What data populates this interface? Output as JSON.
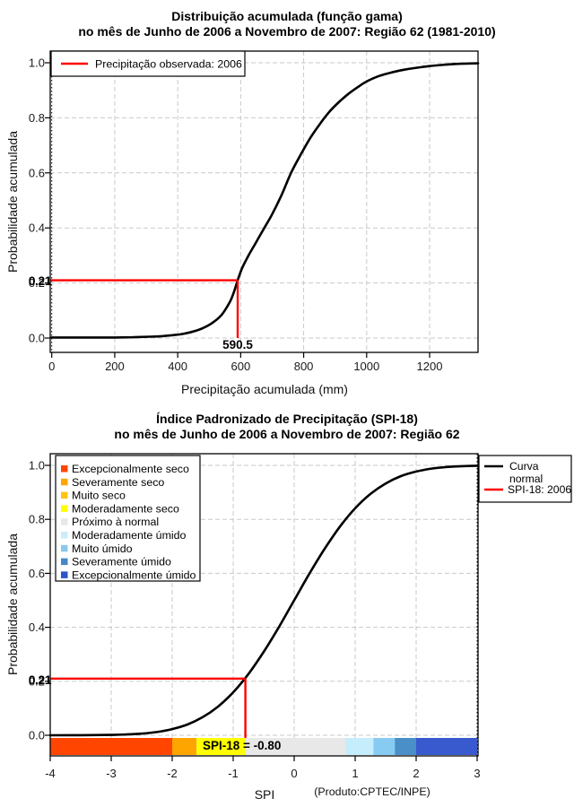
{
  "accent_color": "#FF0000",
  "curve_color": "#000000",
  "chart_data": [
    {
      "type": "line",
      "title": "Distribuição acumulada (função gama)",
      "subtitle": "no mês de Junho de 2006 a Novembro de 2007: Região 62 (1981-2010)",
      "xlabel": "Precipitação acumulada (mm)",
      "ylabel": "Probabilidade acumulada",
      "xlim": [
        0,
        1360
      ],
      "ylim": [
        0,
        1
      ],
      "grid": true,
      "xticks": [
        "0",
        "200",
        "400",
        "600",
        "800",
        "1000",
        "1200"
      ],
      "yticks": [
        "0.0",
        "0.2",
        "0.4",
        "0.6",
        "0.8",
        "1.0"
      ],
      "legend": [
        {
          "label": "Precipitação observada: 2006",
          "color": "#FF0000"
        }
      ],
      "legend_position": "top-left",
      "series": [
        {
          "name": "Distribuição gama acumulada",
          "color": "#000000",
          "points": [
            [
              0,
              0.002
            ],
            [
              120,
              0.002
            ],
            [
              200,
              0.002
            ],
            [
              260,
              0.003
            ],
            [
              310,
              0.005
            ],
            [
              350,
              0.007
            ],
            [
              390,
              0.011
            ],
            [
              420,
              0.016
            ],
            [
              450,
              0.024
            ],
            [
              480,
              0.036
            ],
            [
              510,
              0.055
            ],
            [
              540,
              0.085
            ],
            [
              565,
              0.13
            ],
            [
              578,
              0.165
            ],
            [
              590.5,
              0.21
            ],
            [
              605,
              0.255
            ],
            [
              625,
              0.3
            ],
            [
              650,
              0.35
            ],
            [
              675,
              0.4
            ],
            [
              700,
              0.45
            ],
            [
              730,
              0.52
            ],
            [
              760,
              0.6
            ],
            [
              790,
              0.665
            ],
            [
              820,
              0.725
            ],
            [
              850,
              0.775
            ],
            [
              880,
              0.82
            ],
            [
              910,
              0.855
            ],
            [
              940,
              0.885
            ],
            [
              970,
              0.91
            ],
            [
              1000,
              0.932
            ],
            [
              1040,
              0.952
            ],
            [
              1080,
              0.965
            ],
            [
              1120,
              0.975
            ],
            [
              1160,
              0.982
            ],
            [
              1200,
              0.988
            ],
            [
              1250,
              0.993
            ],
            [
              1300,
              0.9965
            ],
            [
              1354,
              0.998
            ]
          ]
        }
      ],
      "marker": {
        "x": 590.5,
        "y": 0.21,
        "x_label": "590.5",
        "y_label": "0.21",
        "color": "#FF0000"
      }
    },
    {
      "type": "line",
      "title": "Índice Padronizado de Precipitação (SPI-18)",
      "subtitle": "no mês de Junho de 2006 a Novembro de 2007: Região 62",
      "xlabel": "SPI",
      "ylabel": "Probabilidade acumulada",
      "xlim": [
        -4,
        3
      ],
      "ylim": [
        0,
        1
      ],
      "grid": true,
      "xticks": [
        "-4",
        "-3",
        "-2",
        "-1",
        "0",
        "1",
        "2",
        "3"
      ],
      "yticks": [
        "0.0",
        "0.2",
        "0.4",
        "0.6",
        "0.8",
        "1.0"
      ],
      "categories_legend": [
        {
          "label": "Excepcionalmente seco",
          "color": "#FF4500"
        },
        {
          "label": "Severamente seco",
          "color": "#FFA500"
        },
        {
          "label": "Muito seco",
          "color": "#FFC414"
        },
        {
          "label": "Moderadamente seco",
          "color": "#FFFF00"
        },
        {
          "label": "Próximo à normal",
          "color": "#E8E8E8"
        },
        {
          "label": "Moderadamente úmido",
          "color": "#CBECF8"
        },
        {
          "label": "Muito úmido",
          "color": "#8CC8EE"
        },
        {
          "label": "Severamente úmido",
          "color": "#4589C8"
        },
        {
          "label": "Excepcionalmente úmido",
          "color": "#2B55C8"
        }
      ],
      "curve_legend": [
        {
          "label_lines": [
            "Curva",
            "normal"
          ],
          "color": "#000000"
        },
        {
          "label_lines": [
            "SPI-18: 2006"
          ],
          "color": "#FF0000"
        }
      ],
      "series": [
        {
          "name": "Curva normal",
          "color": "#000000",
          "points": [
            [
              -4,
              0.0001
            ],
            [
              -3.5,
              0.0002
            ],
            [
              -3,
              0.0013
            ],
            [
              -2.75,
              0.003
            ],
            [
              -2.5,
              0.006
            ],
            [
              -2.25,
              0.012
            ],
            [
              -2,
              0.023
            ],
            [
              -1.75,
              0.04
            ],
            [
              -1.5,
              0.067
            ],
            [
              -1.25,
              0.106
            ],
            [
              -1,
              0.159
            ],
            [
              -0.75,
              0.227
            ],
            [
              -0.5,
              0.309
            ],
            [
              -0.25,
              0.401
            ],
            [
              0,
              0.5
            ],
            [
              0.25,
              0.599
            ],
            [
              0.5,
              0.691
            ],
            [
              0.75,
              0.773
            ],
            [
              1,
              0.841
            ],
            [
              1.25,
              0.894
            ],
            [
              1.5,
              0.933
            ],
            [
              1.75,
              0.96
            ],
            [
              2,
              0.977
            ],
            [
              2.25,
              0.988
            ],
            [
              2.5,
              0.994
            ],
            [
              2.75,
              0.997
            ],
            [
              3,
              0.9987
            ]
          ]
        }
      ],
      "marker": {
        "x": -0.8,
        "y": 0.21,
        "y_label": "0.21",
        "annotation": "SPI-18 = -0.80",
        "color": "#FF0000"
      },
      "color_bar": [
        {
          "from": -4,
          "to": -2,
          "color": "#FF4500"
        },
        {
          "from": -2,
          "to": -1.6,
          "color": "#FFA500"
        },
        {
          "from": -1.6,
          "to": -0.8,
          "color": "#FFFF00"
        },
        {
          "from": -0.8,
          "to": 0.84,
          "color": "#E8E8E8"
        },
        {
          "from": 0.84,
          "to": 1.3,
          "color": "#C6EDFB"
        },
        {
          "from": 1.3,
          "to": 1.65,
          "color": "#87CBF2"
        },
        {
          "from": 1.65,
          "to": 2.0,
          "color": "#4A8FC7"
        },
        {
          "from": 2.0,
          "to": 3.0,
          "color": "#3959CE"
        }
      ],
      "footnote": "(Produto:CPTEC/INPE)"
    }
  ]
}
